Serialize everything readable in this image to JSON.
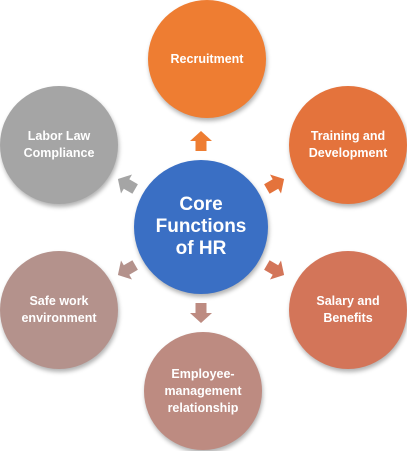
{
  "center": {
    "label": "Core\nFunctions\nof HR",
    "color": "#3A6FC4"
  },
  "nodes": [
    {
      "label": "Recruitment",
      "color": "#EE7D32"
    },
    {
      "label": "Training and\nDevelopment",
      "color": "#E4733C"
    },
    {
      "label": "Salary and\nBenefits",
      "color": "#D37559"
    },
    {
      "label": "Employee-\nmanagement\nrelationship",
      "color": "#BD8B81"
    },
    {
      "label": "Safe work\nenvironment",
      "color": "#B4928C"
    },
    {
      "label": "Labor Law\nCompliance",
      "color": "#A5A5A5"
    }
  ],
  "arrow_colors": [
    "#EE7D32",
    "#E4733C",
    "#D37559",
    "#BD8B81",
    "#B4928C",
    "#A5A5A5"
  ]
}
